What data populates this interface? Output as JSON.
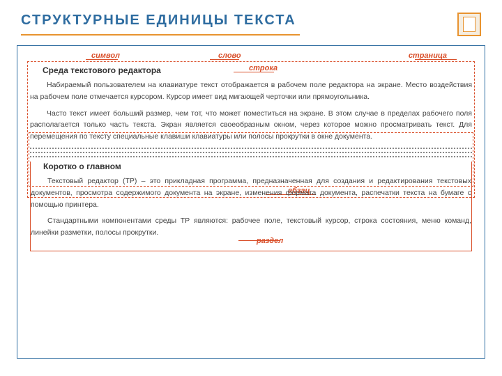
{
  "title": "СТРУКТУРНЫЕ  ЕДИНИЦЫ  ТЕКСТА",
  "labels": {
    "simvol": "символ",
    "slovo": "слово",
    "stroka": "строка",
    "stranica": "страница",
    "abzac": "абзац",
    "razdel": "раздел"
  },
  "section1": {
    "heading": "Среда текстового редактора",
    "p1": "Набираемый пользователем на клавиатуре текст отображается в рабочем поле редактора на экране. Место воздействия на рабочем поле отмечается курсором. Курсор имеет вид мигающей черточки или прямоугольника.",
    "p2": "Часто текст имеет больший размер, чем тот, что может поместиться на экране. В этом случае в пределах рабочего поля располагается только часть текста. Экран является своеобразным окном, через которое можно просматривать текст. Для перемещения по тексту специальные клавиши клавиатуры или полосы прокрутки в окне документа."
  },
  "section2": {
    "heading": "Коротко о главном",
    "p1": "Текстовый редактор (ТР) – это прикладная программа, предназначенная для создания и редактирования текстовых документов, просмотра содержимого документа на экране, изменения формата документа, распечатки текста на бумаге с помощью принтера.",
    "p2": "Стандартными компонентами среды ТР являются: рабочее поле, текстовый курсор, строка состояния, меню команд, линейки разметки, полосы прокрутки."
  },
  "colors": {
    "title_color": "#2e6ca0",
    "accent_color": "#e8932f",
    "label_color": "#d94f2a",
    "frame_border": "#2e6ca0",
    "text_color": "#444444",
    "background": "#ffffff"
  },
  "fonts": {
    "title_size": 20,
    "heading_size": 12,
    "body_size": 10.5,
    "label_size": 11
  }
}
